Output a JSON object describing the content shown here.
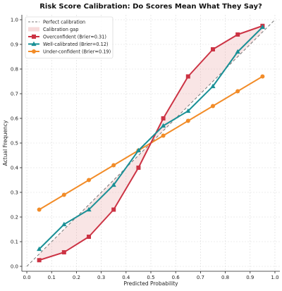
{
  "chart_data": {
    "type": "line",
    "title": "Risk Score Calibration: Do Scores Mean What They Say?",
    "xlabel": "Predicted Probability",
    "ylabel": "Actual Frequency",
    "xlim": [
      -0.02,
      1.02
    ],
    "ylim": [
      -0.02,
      1.02
    ],
    "xticks": [
      "0.0",
      "0.1",
      "0.2",
      "0.3",
      "0.4",
      "0.5",
      "0.6",
      "0.7",
      "0.8",
      "0.9",
      "1.0"
    ],
    "yticks": [
      "0.0",
      "0.1",
      "0.2",
      "0.3",
      "0.4",
      "0.5",
      "0.6",
      "0.7",
      "0.8",
      "0.9",
      "1.0"
    ],
    "grid": true,
    "legend_position": "top-left",
    "reference_line": {
      "name": "Perfect calibration",
      "x": [
        0,
        1
      ],
      "y": [
        0,
        1
      ],
      "color": "#777777"
    },
    "gap_fill": {
      "name": "Calibration gap",
      "color": "#e8a3a3"
    },
    "x": [
      0.05,
      0.15,
      0.25,
      0.35,
      0.45,
      0.55,
      0.65,
      0.75,
      0.85,
      0.95
    ],
    "series": [
      {
        "name": "Overconfident (Brier=0.31)",
        "color": "#cc3344",
        "marker": "square",
        "values": [
          0.025,
          0.057,
          0.12,
          0.23,
          0.4,
          0.6,
          0.77,
          0.88,
          0.94,
          0.975
        ]
      },
      {
        "name": "Well-calibrated (Brier=0.12)",
        "color": "#1a9096",
        "marker": "triangle",
        "values": [
          0.07,
          0.17,
          0.23,
          0.33,
          0.47,
          0.57,
          0.63,
          0.73,
          0.87,
          0.97
        ]
      },
      {
        "name": "Under-confident (Brier=0.19)",
        "color": "#f28c28",
        "marker": "circle",
        "values": [
          0.23,
          0.29,
          0.35,
          0.41,
          0.47,
          0.53,
          0.59,
          0.65,
          0.71,
          0.77
        ]
      }
    ]
  }
}
